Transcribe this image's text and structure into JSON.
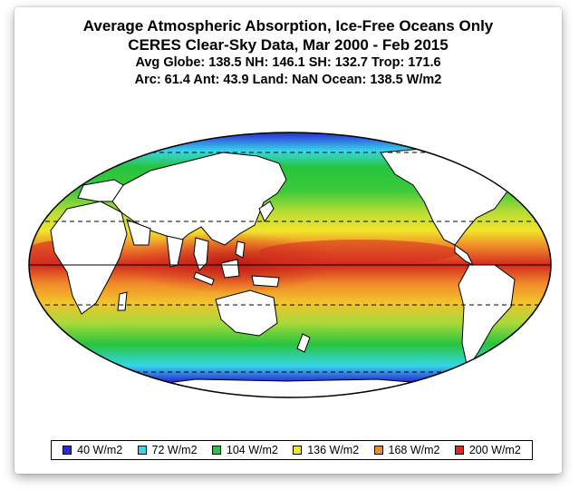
{
  "titles": {
    "line1": "Average Atmospheric Absorption, Ice-Free Oceans Only",
    "line2": "CERES Clear-Sky Data, Mar 2000 - Feb 2015",
    "line3": "Avg Globe: 138.5  NH: 146.1  SH: 132.7  Trop: 171.6",
    "line4": "Arc: 61.4  Ant: 43.9  Land: NaN Ocean: 138.5 W/m2"
  },
  "legend": [
    {
      "label": "40 W/m2",
      "color": "#2b2bd9"
    },
    {
      "label": "72 W/m2",
      "color": "#36d6e8"
    },
    {
      "label": "104 W/m2",
      "color": "#27c43f"
    },
    {
      "label": "136 W/m2",
      "color": "#f2e52a"
    },
    {
      "label": "168 W/m2",
      "color": "#f08a2b"
    },
    {
      "label": "200 W/m2",
      "color": "#d42a1f"
    }
  ],
  "map": {
    "projection": "Mollweide",
    "center_longitude": "Pacific-centered",
    "reference_lines": [
      "equator",
      "tropics (dashed)",
      "polar circles (dashed)"
    ]
  }
}
